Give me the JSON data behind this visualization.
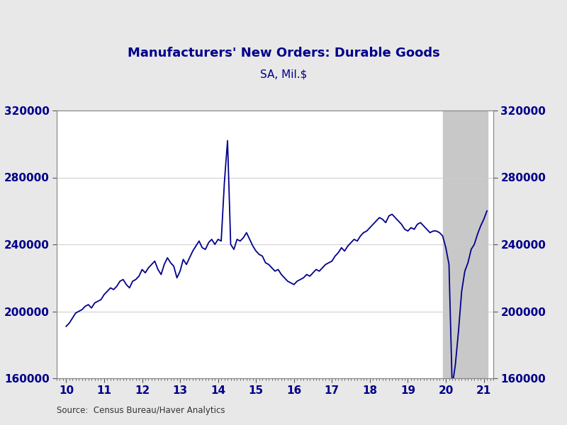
{
  "title": "Manufacturers' New Orders: Durable Goods",
  "subtitle": "SA, Mil.$",
  "source": "Source:  Census Bureau/Haver Analytics",
  "line_color": "#00008B",
  "background_color": "#E8E8E8",
  "plot_background": "#FFFFFF",
  "shade_color": "#C8C8C8",
  "shade_start": 19.917,
  "shade_end": 21.1,
  "ylim": [
    160000,
    320000
  ],
  "xlim": [
    9.75,
    21.25
  ],
  "yticks": [
    160000,
    200000,
    240000,
    280000,
    320000
  ],
  "xticks": [
    10,
    11,
    12,
    13,
    14,
    15,
    16,
    17,
    18,
    19,
    20,
    21
  ],
  "title_color": "#00008B",
  "tick_color": "#00008B",
  "monthly_data": [
    [
      10.0,
      191000
    ],
    [
      10.083,
      193000
    ],
    [
      10.167,
      196000
    ],
    [
      10.25,
      199000
    ],
    [
      10.333,
      200000
    ],
    [
      10.417,
      201000
    ],
    [
      10.5,
      203000
    ],
    [
      10.583,
      204000
    ],
    [
      10.667,
      202000
    ],
    [
      10.75,
      205000
    ],
    [
      10.833,
      206000
    ],
    [
      10.917,
      207000
    ],
    [
      11.0,
      210000
    ],
    [
      11.083,
      212000
    ],
    [
      11.167,
      214000
    ],
    [
      11.25,
      213000
    ],
    [
      11.333,
      215000
    ],
    [
      11.417,
      218000
    ],
    [
      11.5,
      219000
    ],
    [
      11.583,
      216000
    ],
    [
      11.667,
      214000
    ],
    [
      11.75,
      218000
    ],
    [
      11.833,
      219000
    ],
    [
      11.917,
      221000
    ],
    [
      12.0,
      225000
    ],
    [
      12.083,
      223000
    ],
    [
      12.167,
      226000
    ],
    [
      12.25,
      228000
    ],
    [
      12.333,
      230000
    ],
    [
      12.417,
      225000
    ],
    [
      12.5,
      222000
    ],
    [
      12.583,
      228000
    ],
    [
      12.667,
      232000
    ],
    [
      12.75,
      229000
    ],
    [
      12.833,
      227000
    ],
    [
      12.917,
      220000
    ],
    [
      13.0,
      224000
    ],
    [
      13.083,
      231000
    ],
    [
      13.167,
      228000
    ],
    [
      13.25,
      232000
    ],
    [
      13.333,
      236000
    ],
    [
      13.417,
      239000
    ],
    [
      13.5,
      242000
    ],
    [
      13.583,
      238000
    ],
    [
      13.667,
      237000
    ],
    [
      13.75,
      241000
    ],
    [
      13.833,
      243000
    ],
    [
      13.917,
      240000
    ],
    [
      14.0,
      243000
    ],
    [
      14.083,
      242000
    ],
    [
      14.167,
      277000
    ],
    [
      14.25,
      302000
    ],
    [
      14.333,
      240000
    ],
    [
      14.417,
      237000
    ],
    [
      14.5,
      243000
    ],
    [
      14.583,
      242000
    ],
    [
      14.667,
      244000
    ],
    [
      14.75,
      247000
    ],
    [
      14.833,
      243000
    ],
    [
      14.917,
      239000
    ],
    [
      15.0,
      236000
    ],
    [
      15.083,
      234000
    ],
    [
      15.167,
      233000
    ],
    [
      15.25,
      229000
    ],
    [
      15.333,
      228000
    ],
    [
      15.417,
      226000
    ],
    [
      15.5,
      224000
    ],
    [
      15.583,
      225000
    ],
    [
      15.667,
      222000
    ],
    [
      15.75,
      220000
    ],
    [
      15.833,
      218000
    ],
    [
      15.917,
      217000
    ],
    [
      16.0,
      216000
    ],
    [
      16.083,
      218000
    ],
    [
      16.167,
      219000
    ],
    [
      16.25,
      220000
    ],
    [
      16.333,
      222000
    ],
    [
      16.417,
      221000
    ],
    [
      16.5,
      223000
    ],
    [
      16.583,
      225000
    ],
    [
      16.667,
      224000
    ],
    [
      16.75,
      226000
    ],
    [
      16.833,
      228000
    ],
    [
      16.917,
      229000
    ],
    [
      17.0,
      230000
    ],
    [
      17.083,
      233000
    ],
    [
      17.167,
      235000
    ],
    [
      17.25,
      238000
    ],
    [
      17.333,
      236000
    ],
    [
      17.417,
      239000
    ],
    [
      17.5,
      241000
    ],
    [
      17.583,
      243000
    ],
    [
      17.667,
      242000
    ],
    [
      17.75,
      245000
    ],
    [
      17.833,
      247000
    ],
    [
      17.917,
      248000
    ],
    [
      18.0,
      250000
    ],
    [
      18.083,
      252000
    ],
    [
      18.167,
      254000
    ],
    [
      18.25,
      256000
    ],
    [
      18.333,
      255000
    ],
    [
      18.417,
      253000
    ],
    [
      18.5,
      257000
    ],
    [
      18.583,
      258000
    ],
    [
      18.667,
      256000
    ],
    [
      18.75,
      254000
    ],
    [
      18.833,
      252000
    ],
    [
      18.917,
      249000
    ],
    [
      19.0,
      248000
    ],
    [
      19.083,
      250000
    ],
    [
      19.167,
      249000
    ],
    [
      19.25,
      252000
    ],
    [
      19.333,
      253000
    ],
    [
      19.417,
      251000
    ],
    [
      19.5,
      249000
    ],
    [
      19.583,
      247000
    ],
    [
      19.667,
      248000
    ],
    [
      19.75,
      248000
    ],
    [
      19.833,
      247000
    ],
    [
      19.917,
      245000
    ],
    [
      20.0,
      238000
    ],
    [
      20.083,
      228000
    ],
    [
      20.167,
      155000
    ],
    [
      20.25,
      168000
    ],
    [
      20.333,
      188000
    ],
    [
      20.417,
      212000
    ],
    [
      20.5,
      224000
    ],
    [
      20.583,
      229000
    ],
    [
      20.667,
      237000
    ],
    [
      20.75,
      240000
    ],
    [
      20.833,
      246000
    ],
    [
      20.917,
      251000
    ],
    [
      21.0,
      255000
    ],
    [
      21.083,
      260000
    ]
  ]
}
